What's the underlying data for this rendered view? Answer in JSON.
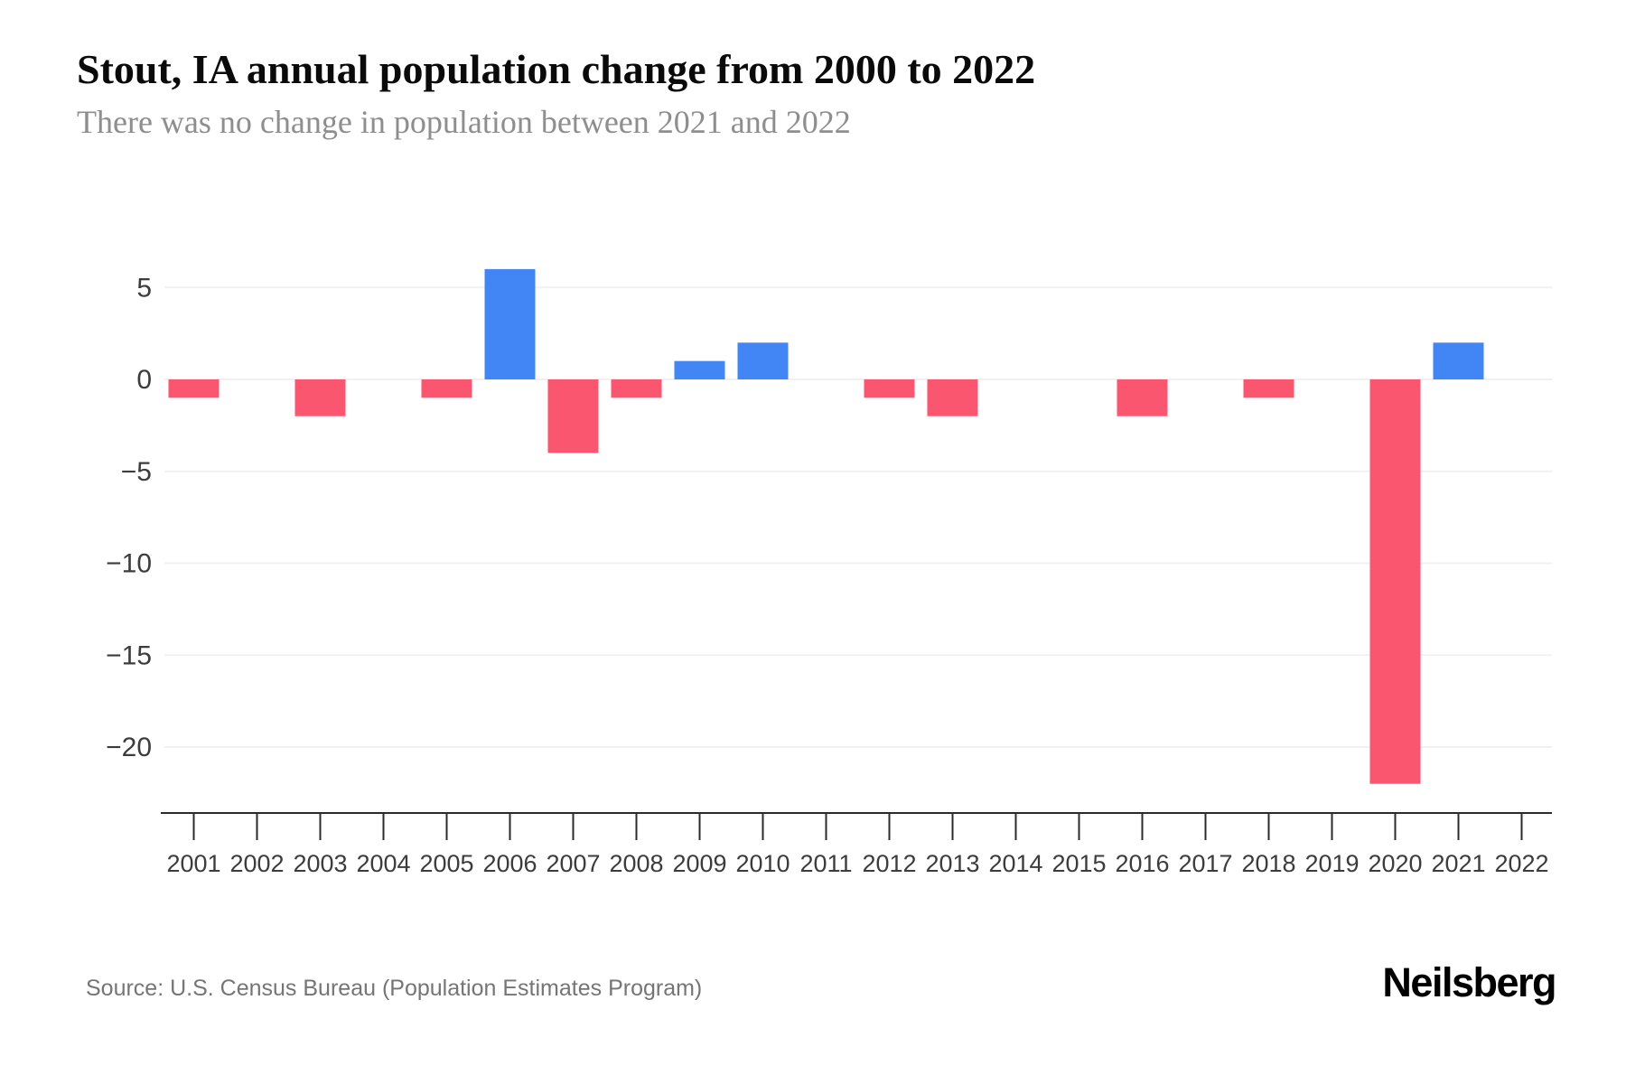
{
  "page": {
    "title": "Stout, IA annual population change from 2000 to 2022",
    "subtitle": "There was no change in population between 2021 and 2022",
    "source": "Source: U.S. Census Bureau (Population Estimates Program)",
    "brand": "Neilsberg"
  },
  "colors": {
    "positive_bar": "#4285f4",
    "negative_bar": "#fa566f",
    "gridline": "#f1f1f3",
    "axis_line": "#2b2b2b",
    "tick_label": "#3c3c3c",
    "background": "#ffffff"
  },
  "chart_data": {
    "type": "bar",
    "title": "Stout, IA annual population change from 2000 to 2022",
    "subtitle": "There was no change in population between 2021 and 2022",
    "xlabel": "",
    "ylabel": "",
    "categories": [
      "2001",
      "2002",
      "2003",
      "2004",
      "2005",
      "2006",
      "2007",
      "2008",
      "2009",
      "2010",
      "2011",
      "2012",
      "2013",
      "2014",
      "2015",
      "2016",
      "2017",
      "2018",
      "2019",
      "2020",
      "2021",
      "2022"
    ],
    "values": [
      -1,
      0,
      -2,
      0,
      -1,
      6,
      -4,
      -1,
      1,
      2,
      0,
      -1,
      -2,
      0,
      0,
      -2,
      0,
      -1,
      0,
      -22,
      2,
      0
    ],
    "yticks": [
      5,
      0,
      -5,
      -10,
      -15,
      -20
    ],
    "ylim": [
      -23.6,
      8.3
    ],
    "grid": "horizontal",
    "legend": "none",
    "positive_color": "#4285f4",
    "negative_color": "#fa566f"
  }
}
